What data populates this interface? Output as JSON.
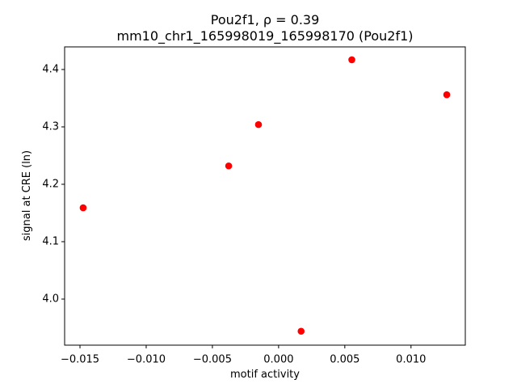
{
  "chart_data": {
    "type": "scatter",
    "title": "Pou2f1, ρ = 0.39",
    "subtitle": "mm10_chr1_165998019_165998170 (Pou2f1)",
    "x_label": "motif activity",
    "y_label": "signal at CRE (ln)",
    "color": "#ff0000",
    "x": [
      -0.01476,
      -0.00377,
      -0.00152,
      0.0017,
      0.00553,
      0.0127
    ],
    "values": [
      4.159,
      4.232,
      4.304,
      3.944,
      4.417,
      4.356
    ],
    "xlim": [
      -0.01616,
      0.0141
    ],
    "ylim": [
      3.9197,
      4.4394
    ],
    "xticks": [
      {
        "value": -0.015,
        "label": "−0.015"
      },
      {
        "value": -0.01,
        "label": "−0.010"
      },
      {
        "value": -0.005,
        "label": "−0.005"
      },
      {
        "value": 0,
        "label": "0.000"
      },
      0.005,
      {
        "value": 0.01,
        "label": "0.010"
      }
    ],
    "yticks": [
      {
        "value": 4.0,
        "label": "4.0"
      },
      4.1,
      4.2,
      4.3,
      4.4
    ]
  }
}
